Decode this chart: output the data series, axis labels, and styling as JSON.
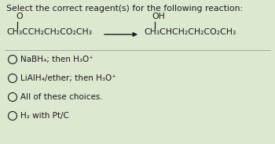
{
  "title": "Select the correct reagent(s) for the following reaction:",
  "title_fontsize": 7.8,
  "bg_color": "#dde8d0",
  "text_color": "#1a1a1a",
  "reactant_o": "O",
  "reactant_formula": "CH₃CCH₂CH₂CO₂CH₃",
  "product_oh": "OH",
  "product_formula": "CH₃CHCH₂CH₂CO₂CH₃",
  "choices": [
    "NaBH₄; then H₃O⁺",
    "LiAlH₄/ether; then H₃O⁺",
    "All of these choices.",
    "H₂ with Pt/C"
  ],
  "choice_fontsize": 7.5,
  "formula_fontsize": 7.8
}
